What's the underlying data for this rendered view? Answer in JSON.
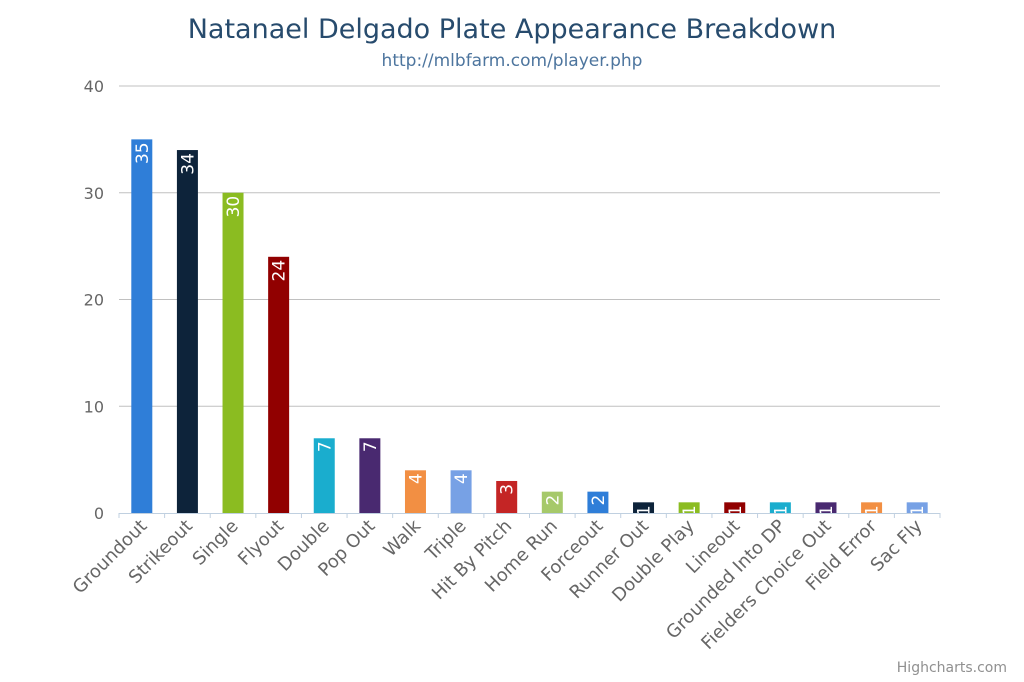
{
  "chart_data": {
    "type": "bar",
    "title": "Natanael Delgado Plate Appearance Breakdown",
    "subtitle": "http://mlbfarm.com/player.php",
    "categories": [
      "Groundout",
      "Strikeout",
      "Single",
      "Flyout",
      "Double",
      "Pop Out",
      "Walk",
      "Triple",
      "Hit By Pitch",
      "Home Run",
      "Forceout",
      "Runner Out",
      "Double Play",
      "Lineout",
      "Grounded Into DP",
      "Fielders Choice Out",
      "Field Error",
      "Sac Fly"
    ],
    "values": [
      35,
      34,
      30,
      24,
      7,
      7,
      4,
      4,
      3,
      2,
      2,
      1,
      1,
      1,
      1,
      1,
      1,
      1
    ],
    "data_labels": [
      "35",
      "34",
      "30",
      "24",
      "7",
      "7",
      "4",
      "4",
      "3",
      "2",
      "2",
      "1",
      "1",
      "1",
      "1",
      "1",
      "1",
      "1"
    ],
    "colors": [
      "#2f7ed8",
      "#0d233a",
      "#8bbc21",
      "#910000",
      "#1aadce",
      "#492970",
      "#f28f43",
      "#77a1e5",
      "#c42525",
      "#a6c96a",
      "#2f7ed8",
      "#0d233a",
      "#8bbc21",
      "#910000",
      "#1aadce",
      "#492970",
      "#f28f43",
      "#77a1e5"
    ],
    "y_ticks": [
      "0",
      "10",
      "20",
      "30",
      "40"
    ],
    "ylim": [
      0,
      40
    ],
    "grid": true,
    "legend": "none"
  },
  "credits": "Highcharts.com"
}
